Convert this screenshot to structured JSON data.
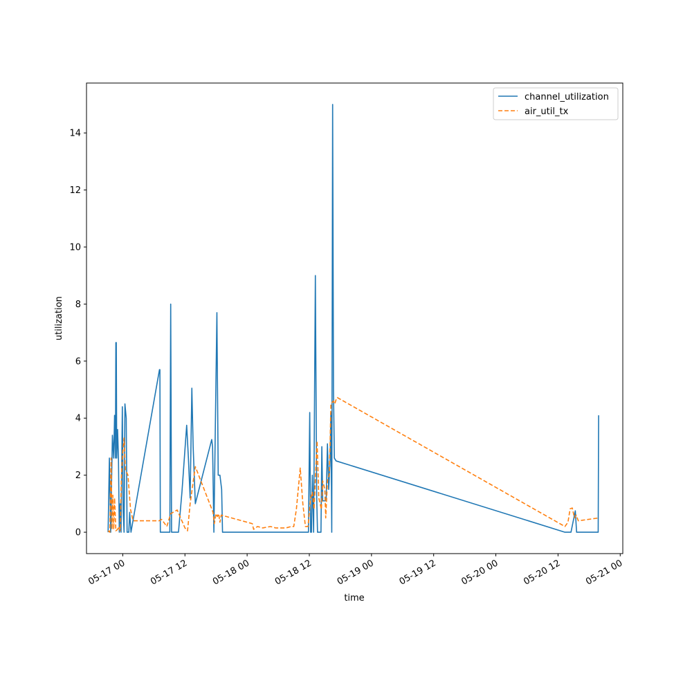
{
  "chart_data": {
    "type": "line",
    "title": "",
    "xlabel": "time",
    "ylabel": "utilization",
    "x_unit": "datetime",
    "xlim": [
      "2024-05-16 17:00",
      "2024-05-21 00:30"
    ],
    "ylim": [
      -0.75,
      15.75
    ],
    "xticks": [
      {
        "value": "2024-05-17 00:00",
        "label": "05-17 00"
      },
      {
        "value": "2024-05-17 12:00",
        "label": "05-17 12"
      },
      {
        "value": "2024-05-18 00:00",
        "label": "05-18 00"
      },
      {
        "value": "2024-05-18 12:00",
        "label": "05-18 12"
      },
      {
        "value": "2024-05-19 00:00",
        "label": "05-19 00"
      },
      {
        "value": "2024-05-19 12:00",
        "label": "05-19 12"
      },
      {
        "value": "2024-05-20 00:00",
        "label": "05-20 00"
      },
      {
        "value": "2024-05-20 12:00",
        "label": "05-20 12"
      },
      {
        "value": "2024-05-21 00:00",
        "label": "05-21 00"
      }
    ],
    "yticks": [
      0,
      2,
      4,
      6,
      8,
      10,
      12,
      14
    ],
    "grid": false,
    "legend": "top-right",
    "series": [
      {
        "name": "channel_utilization",
        "color": "#1f77b4",
        "style": "solid",
        "points": [
          [
            "2024-05-16 21:10",
            0.0
          ],
          [
            "2024-05-16 21:25",
            2.6
          ],
          [
            "2024-05-16 21:40",
            0.0
          ],
          [
            "2024-05-16 22:00",
            3.4
          ],
          [
            "2024-05-16 22:15",
            2.6
          ],
          [
            "2024-05-16 22:25",
            4.1
          ],
          [
            "2024-05-16 22:35",
            2.6
          ],
          [
            "2024-05-16 22:40",
            6.65
          ],
          [
            "2024-05-16 22:45",
            6.65
          ],
          [
            "2024-05-16 22:50",
            2.6
          ],
          [
            "2024-05-16 23:00",
            3.6
          ],
          [
            "2024-05-16 23:10",
            2.6
          ],
          [
            "2024-05-16 23:20",
            0.0
          ],
          [
            "2024-05-16 23:30",
            1.0
          ],
          [
            "2024-05-16 23:40",
            0.0
          ],
          [
            "2024-05-16 23:55",
            4.4
          ],
          [
            "2024-05-17 00:05",
            0.7
          ],
          [
            "2024-05-17 00:15",
            0.0
          ],
          [
            "2024-05-17 00:25",
            4.5
          ],
          [
            "2024-05-17 00:40",
            4.0
          ],
          [
            "2024-05-17 00:50",
            0.0
          ],
          [
            "2024-05-17 01:10",
            0.0
          ],
          [
            "2024-05-17 01:20",
            0.7
          ],
          [
            "2024-05-17 01:35",
            0.0
          ],
          [
            "2024-05-17 07:05",
            5.7
          ],
          [
            "2024-05-17 07:10",
            5.7
          ],
          [
            "2024-05-17 07:15",
            0.0
          ],
          [
            "2024-05-17 09:05",
            0.0
          ],
          [
            "2024-05-17 09:15",
            8.0
          ],
          [
            "2024-05-17 09:25",
            0.0
          ],
          [
            "2024-05-17 10:45",
            0.0
          ],
          [
            "2024-05-17 11:25",
            1.4
          ],
          [
            "2024-05-17 12:20",
            3.75
          ],
          [
            "2024-05-17 12:40",
            2.6
          ],
          [
            "2024-05-17 13:00",
            1.2
          ],
          [
            "2024-05-17 13:20",
            5.05
          ],
          [
            "2024-05-17 13:35",
            3.0
          ],
          [
            "2024-05-17 14:00",
            1.0
          ],
          [
            "2024-05-17 17:10",
            3.25
          ],
          [
            "2024-05-17 17:20",
            3.0
          ],
          [
            "2024-05-17 17:35",
            0.0
          ],
          [
            "2024-05-17 18:10",
            7.7
          ],
          [
            "2024-05-17 18:25",
            2.0
          ],
          [
            "2024-05-17 18:45",
            2.0
          ],
          [
            "2024-05-17 19:05",
            1.5
          ],
          [
            "2024-05-17 19:15",
            0.0
          ],
          [
            "2024-05-18 11:50",
            0.0
          ],
          [
            "2024-05-18 12:05",
            4.2
          ],
          [
            "2024-05-18 12:15",
            0.0
          ],
          [
            "2024-05-18 12:25",
            0.0
          ],
          [
            "2024-05-18 12:35",
            2.0
          ],
          [
            "2024-05-18 12:50",
            0.0
          ],
          [
            "2024-05-18 13:10",
            9.0
          ],
          [
            "2024-05-18 13:25",
            1.3
          ],
          [
            "2024-05-18 13:35",
            0.0
          ],
          [
            "2024-05-18 14:15",
            0.0
          ],
          [
            "2024-05-18 14:25",
            3.0
          ],
          [
            "2024-05-18 14:35",
            1.1
          ],
          [
            "2024-05-18 15:15",
            1.1
          ],
          [
            "2024-05-18 15:30",
            3.1
          ],
          [
            "2024-05-18 15:45",
            1.5
          ],
          [
            "2024-05-18 16:00",
            2.5
          ],
          [
            "2024-05-18 16:10",
            4.2
          ],
          [
            "2024-05-18 16:20",
            0.0
          ],
          [
            "2024-05-18 16:30",
            15.0
          ],
          [
            "2024-05-18 16:40",
            5.0
          ],
          [
            "2024-05-18 16:50",
            2.6
          ],
          [
            "2024-05-18 17:10",
            2.5
          ],
          [
            "2024-05-20 13:20",
            0.0
          ],
          [
            "2024-05-20 14:15",
            0.0
          ],
          [
            "2024-05-20 14:30",
            0.0
          ],
          [
            "2024-05-20 15:20",
            0.75
          ],
          [
            "2024-05-20 15:35",
            0.0
          ],
          [
            "2024-05-20 19:45",
            0.0
          ],
          [
            "2024-05-20 19:50",
            4.1
          ]
        ]
      },
      {
        "name": "air_util_tx",
        "color": "#ff7f0e",
        "style": "dashed",
        "points": [
          [
            "2024-05-16 21:10",
            0.05
          ],
          [
            "2024-05-16 21:30",
            0.0
          ],
          [
            "2024-05-16 21:45",
            2.6
          ],
          [
            "2024-05-16 21:55",
            0.1
          ],
          [
            "2024-05-16 22:05",
            1.3
          ],
          [
            "2024-05-16 22:15",
            0.1
          ],
          [
            "2024-05-16 22:25",
            1.2
          ],
          [
            "2024-05-16 22:40",
            0.05
          ],
          [
            "2024-05-16 23:00",
            0.1
          ],
          [
            "2024-05-16 23:15",
            0.2
          ],
          [
            "2024-05-16 23:30",
            0.05
          ],
          [
            "2024-05-16 23:45",
            2.0
          ],
          [
            "2024-05-17 00:00",
            2.8
          ],
          [
            "2024-05-17 00:15",
            3.3
          ],
          [
            "2024-05-17 00:30",
            2.2
          ],
          [
            "2024-05-17 01:00",
            2.0
          ],
          [
            "2024-05-17 01:30",
            0.8
          ],
          [
            "2024-05-17 02:00",
            0.4
          ],
          [
            "2024-05-17 07:00",
            0.4
          ],
          [
            "2024-05-17 07:30",
            0.45
          ],
          [
            "2024-05-17 08:30",
            0.2
          ],
          [
            "2024-05-17 09:15",
            0.65
          ],
          [
            "2024-05-17 10:30",
            0.78
          ],
          [
            "2024-05-17 12:00",
            0.15
          ],
          [
            "2024-05-17 12:30",
            0.05
          ],
          [
            "2024-05-17 13:00",
            1.0
          ],
          [
            "2024-05-17 14:00",
            2.3
          ],
          [
            "2024-05-17 17:25",
            0.7
          ],
          [
            "2024-05-17 17:40",
            0.3
          ],
          [
            "2024-05-17 18:00",
            0.65
          ],
          [
            "2024-05-17 18:15",
            0.55
          ],
          [
            "2024-05-17 18:30",
            0.65
          ],
          [
            "2024-05-17 18:45",
            0.35
          ],
          [
            "2024-05-17 19:00",
            0.6
          ],
          [
            "2024-05-18 01:00",
            0.3
          ],
          [
            "2024-05-18 01:15",
            0.1
          ],
          [
            "2024-05-18 02:00",
            0.2
          ],
          [
            "2024-05-18 03:00",
            0.15
          ],
          [
            "2024-05-18 04:30",
            0.2
          ],
          [
            "2024-05-18 05:30",
            0.15
          ],
          [
            "2024-05-18 07:30",
            0.15
          ],
          [
            "2024-05-18 08:30",
            0.2
          ],
          [
            "2024-05-18 09:00",
            0.2
          ],
          [
            "2024-05-18 09:30",
            0.8
          ],
          [
            "2024-05-18 10:15",
            2.25
          ],
          [
            "2024-05-18 10:45",
            1.0
          ],
          [
            "2024-05-18 11:15",
            0.2
          ],
          [
            "2024-05-18 11:45",
            0.2
          ],
          [
            "2024-05-18 12:15",
            1.2
          ],
          [
            "2024-05-18 12:35",
            1.4
          ],
          [
            "2024-05-18 12:55",
            0.8
          ],
          [
            "2024-05-18 13:15",
            2.2
          ],
          [
            "2024-05-18 13:30",
            3.2
          ],
          [
            "2024-05-18 13:50",
            1.2
          ],
          [
            "2024-05-18 14:20",
            0.8
          ],
          [
            "2024-05-18 14:35",
            1.8
          ],
          [
            "2024-05-18 15:00",
            1.5
          ],
          [
            "2024-05-18 15:10",
            0.5
          ],
          [
            "2024-05-18 15:30",
            1.8
          ],
          [
            "2024-05-18 15:50",
            2.0
          ],
          [
            "2024-05-18 16:00",
            3.0
          ],
          [
            "2024-05-18 16:10",
            4.5
          ],
          [
            "2024-05-18 16:40",
            4.6
          ],
          [
            "2024-05-18 16:55",
            4.5
          ],
          [
            "2024-05-18 17:15",
            4.7
          ],
          [
            "2024-05-18 17:25",
            4.72
          ],
          [
            "2024-05-20 13:20",
            0.2
          ],
          [
            "2024-05-20 13:55",
            0.35
          ],
          [
            "2024-05-20 14:20",
            0.82
          ],
          [
            "2024-05-20 14:45",
            0.85
          ],
          [
            "2024-05-20 15:10",
            0.5
          ],
          [
            "2024-05-20 15:30",
            0.6
          ],
          [
            "2024-05-20 15:55",
            0.4
          ],
          [
            "2024-05-20 19:50",
            0.5
          ]
        ]
      }
    ]
  }
}
